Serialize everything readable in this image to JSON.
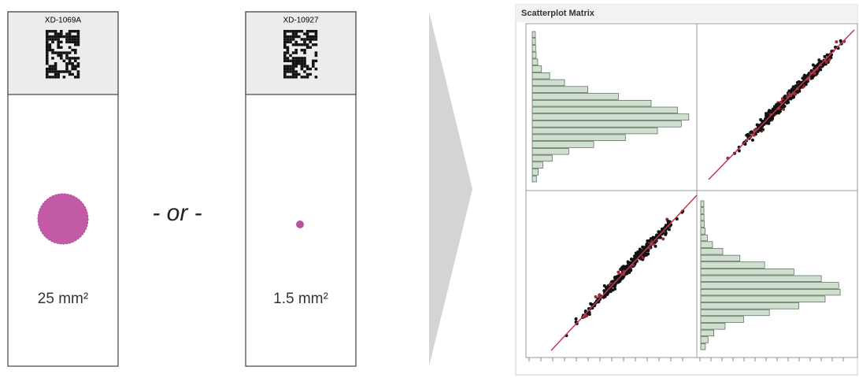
{
  "slides": [
    {
      "id": "XD-1069A",
      "area": "25 mm²"
    },
    {
      "id": "XD-10927",
      "area": "1.5 mm²"
    }
  ],
  "separator": "- or -",
  "panel": {
    "title": "Scatterplot Matrix"
  }
}
